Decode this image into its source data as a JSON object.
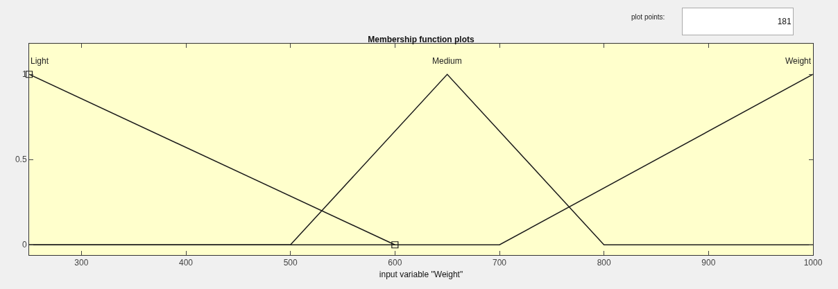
{
  "chart_data": {
    "type": "line",
    "title": "Membership function plots",
    "xlabel": "input variable \"Weight\"",
    "xlim": [
      250,
      1000
    ],
    "xticks": [
      300,
      400,
      500,
      600,
      700,
      800,
      900,
      1000
    ],
    "ylim": [
      -0.06,
      1.18
    ],
    "yticks": [
      0,
      0.5,
      1
    ],
    "grid": false,
    "legend": false,
    "line_style": "solid",
    "series": [
      {
        "name": "Light",
        "color": "#1a1a1a",
        "x": [
          250,
          600
        ],
        "values": [
          1,
          0
        ],
        "marker": "square"
      },
      {
        "name": "Medium",
        "color": "#1a1a1a",
        "x": [
          250,
          500,
          650,
          800,
          1000
        ],
        "values": [
          0,
          0,
          1,
          0,
          0
        ],
        "marker": "none"
      },
      {
        "name": "Weight",
        "color": "#1a1a1a",
        "x": [
          250,
          700,
          1000
        ],
        "values": [
          0,
          0,
          1
        ],
        "marker": "none"
      }
    ],
    "annotations": [
      "plot points:",
      "181"
    ]
  }
}
